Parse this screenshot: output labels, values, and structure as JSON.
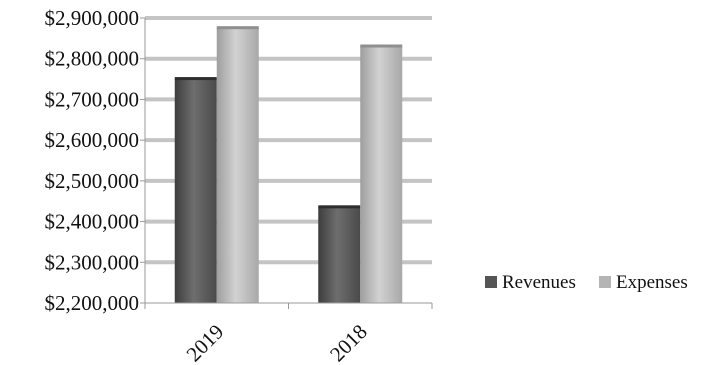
{
  "chart_data": {
    "type": "bar",
    "title": "",
    "xlabel": "",
    "ylabel": "",
    "categories": [
      "2019",
      "2018"
    ],
    "series": [
      {
        "name": "Revenues",
        "values": [
          2750000,
          2435000
        ]
      },
      {
        "name": "Expenses",
        "values": [
          2875000,
          2830000
        ]
      }
    ],
    "ylim": [
      2200000,
      2900000
    ],
    "y_ticks": [
      {
        "value": 2900000,
        "label": "$2,900,000"
      },
      {
        "value": 2800000,
        "label": "$2,800,000"
      },
      {
        "value": 2700000,
        "label": "$2,700,000"
      },
      {
        "value": 2600000,
        "label": "$2,600,000"
      },
      {
        "value": 2500000,
        "label": "$2,500,000"
      },
      {
        "value": 2400000,
        "label": "$2,400,000"
      },
      {
        "value": 2300000,
        "label": "$2,300,000"
      },
      {
        "value": 2200000,
        "label": "$2,200,000"
      }
    ],
    "grid": true,
    "legend_position": "right",
    "colors": {
      "Revenues": "#5f5f5f",
      "Expenses": "#b9b9b9",
      "grid": "#c4c4c4"
    }
  }
}
